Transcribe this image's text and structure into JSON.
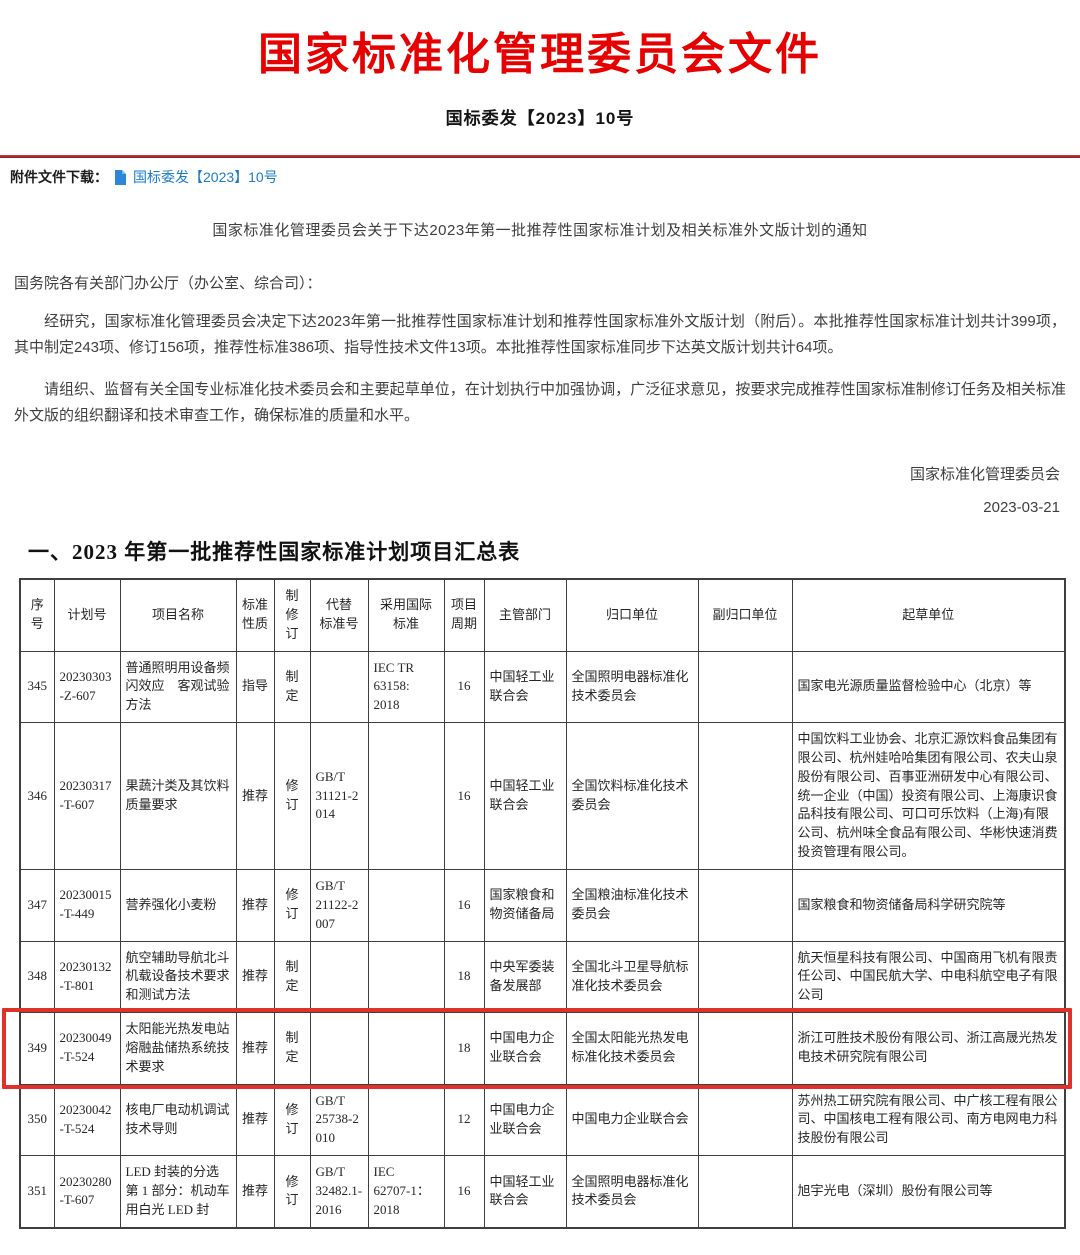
{
  "doc": {
    "banner_title": "国家标准化管理委员会文件",
    "doc_number": "国标委发【2023】10号",
    "notice_title": "国家标准化管理委员会关于下达2023年第一批推荐性国家标准计划及相关标准外文版计划的通知",
    "salutation": "国务院各有关部门办公厅（办公室、综合司）：",
    "paragraphs": [
      "经研究，国家标准化管理委员会决定下达2023年第一批推荐性国家标准计划和推荐性国家标准外文版计划（附后）。本批推荐性国家标准计划共计399项，其中制定243项、修订156项，推荐性标准386项、指导性技术文件13项。本批推荐性国家标准同步下达英文版计划共计64项。",
      "请组织、监督有关全国专业标准化技术委员会和主要起草单位，在计划执行中加强协调，广泛征求意见，按要求完成推荐性国家标准制修订任务及相关标准外文版的组织翻译和技术审查工作，确保标准的质量和水平。"
    ],
    "signature": "国家标准化管理委员会",
    "date": "2023-03-21",
    "section_heading": "一、2023 年第一批推荐性国家标准计划项目汇总表"
  },
  "attachment": {
    "label": "附件文件下载：",
    "icon": "file-icon",
    "link_text": "国标委发【2023】10号"
  },
  "colors": {
    "title-red": "#e60000",
    "rule-red": "#a6242a",
    "link-blue": "#1a7bc9",
    "highlight-red": "#e03228",
    "border-gray": "#3f3f3f"
  },
  "table": {
    "headers": [
      "序\n号",
      "计划号",
      "项目名称",
      "标准\n性质",
      "制修\n订",
      "代替\n标准号",
      "采用国际\n标准",
      "项目\n周期",
      "主管部门",
      "归口单位",
      "副归口单位",
      "起草单位"
    ],
    "rows": [
      {
        "seq": "345",
        "plan_no": "20230303\n-Z-607",
        "name": "普通照明用设备频闪效应　客观试验方法",
        "nature": "指导",
        "revision": "制定",
        "replaces": "",
        "intl_std": "IEC TR\n63158:\n2018",
        "period": "16",
        "dept": "中国轻工业联合会",
        "tc": "全国照明电器标准化技术委员会",
        "sub_tc": "",
        "drafters": "国家电光源质量监督检验中心（北京）等",
        "highlighted": false
      },
      {
        "seq": "346",
        "plan_no": "20230317\n-T-607",
        "name": "果蔬汁类及其饮料质量要求",
        "nature": "推荐",
        "revision": "修订",
        "replaces": "GB/T\n31121-2\n014",
        "intl_std": "",
        "period": "16",
        "dept": "中国轻工业联合会",
        "tc": "全国饮料标准化技术委员会",
        "sub_tc": "",
        "drafters": "中国饮料工业协会、北京汇源饮料食品集团有限公司、杭州娃哈哈集团有限公司、农夫山泉股份有限公司、百事亚洲研发中心有限公司、统一企业（中国）投资有限公司、上海康识食品科技有限公司、可口可乐饮料（上海)有限公司、杭州味全食品有限公司、华彬快速消费投资管理有限公司。",
        "highlighted": false
      },
      {
        "seq": "347",
        "plan_no": "20230015\n-T-449",
        "name": "营养强化小麦粉",
        "nature": "推荐",
        "revision": "修订",
        "replaces": "GB/T\n21122-2\n007",
        "intl_std": "",
        "period": "16",
        "dept": "国家粮食和物资储备局",
        "tc": "全国粮油标准化技术委员会",
        "sub_tc": "",
        "drafters": "国家粮食和物资储备局科学研究院等",
        "highlighted": false
      },
      {
        "seq": "348",
        "plan_no": "20230132\n-T-801",
        "name": "航空辅助导航北斗机载设备技术要求和测试方法",
        "nature": "推荐",
        "revision": "制定",
        "replaces": "",
        "intl_std": "",
        "period": "18",
        "dept": "中央军委装备发展部",
        "tc": "全国北斗卫星导航标准化技术委员会",
        "sub_tc": "",
        "drafters": "航天恒星科技有限公司、中国商用飞机有限责任公司、中国民航大学、中电科航空电子有限公司",
        "highlighted": false
      },
      {
        "seq": "349",
        "plan_no": "20230049\n-T-524",
        "name": "太阳能光热发电站熔融盐储热系统技术要求",
        "nature": "推荐",
        "revision": "制定",
        "replaces": "",
        "intl_std": "",
        "period": "18",
        "dept": "中国电力企业联合会",
        "tc": "全国太阳能光热发电标准化技术委员会",
        "sub_tc": "",
        "drafters": "浙江可胜技术股份有限公司、浙江高晟光热发电技术研究院有限公司",
        "highlighted": true
      },
      {
        "seq": "350",
        "plan_no": "20230042\n-T-524",
        "name": "核电厂电动机调试技术导则",
        "nature": "推荐",
        "revision": "修订",
        "replaces": "GB/T\n25738-2\n010",
        "intl_std": "",
        "period": "12",
        "dept": "中国电力企业联合会",
        "tc": "中国电力企业联合会",
        "sub_tc": "",
        "drafters": "苏州热工研究院有限公司、中广核工程有限公司、中国核电工程有限公司、南方电网电力科技股份有限公司",
        "highlighted": false
      },
      {
        "seq": "351",
        "plan_no": "20230280\n-T-607",
        "name": "LED 封装的分选第 1 部分：机动车用白光 LED 封",
        "nature": "推荐",
        "revision": "修订",
        "replaces": "GB/T\n32482.1-\n2016",
        "intl_std": "IEC\n62707-1：\n2018",
        "period": "16",
        "dept": "中国轻工业联合会",
        "tc": "全国照明电器标准化技术委员会",
        "sub_tc": "",
        "drafters": "旭宇光电（深圳）股份有限公司等",
        "highlighted": false
      }
    ]
  }
}
